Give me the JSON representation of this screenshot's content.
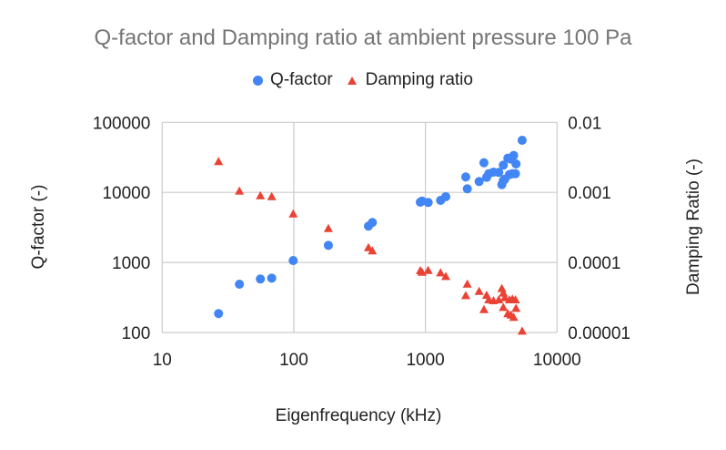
{
  "chart_data": {
    "type": "scatter",
    "title": "Q-factor and Damping ratio at ambient pressure 100 Pa",
    "xlabel": "Eigenfrequency (kHz)",
    "ylabel": "Q-factor (-)",
    "y2label": "Damping Ratio (-)",
    "xscale": "log",
    "yscale": "log",
    "y2scale": "log",
    "xlim": [
      10,
      10000
    ],
    "ylim": [
      100,
      100000
    ],
    "y2lim": [
      1e-05,
      0.01
    ],
    "xticks": [
      "10",
      "100",
      "1000",
      "10000"
    ],
    "yticks": [
      "100",
      "1000",
      "10000",
      "100000"
    ],
    "y2ticks": [
      "0.00001",
      "0.0001",
      "0.001",
      "0.01"
    ],
    "grid": true,
    "legend_position": "top",
    "colors": {
      "q": "#4285f4",
      "d": "#ea4335",
      "grid": "#cccccc",
      "title": "#757575"
    },
    "series": [
      {
        "name": "Q-factor",
        "axis": "left",
        "marker": "circle",
        "x": [
          26.8,
          38.6,
          55.7,
          67.9,
          98.9,
          183,
          369,
          395,
          914,
          942,
          1049,
          1303,
          1427,
          2024,
          2080,
          2558,
          2782,
          2917,
          3027,
          3289,
          3607,
          3805,
          3906,
          4009,
          3906,
          4227,
          4346,
          4466,
          4581,
          4681,
          4831,
          4877,
          5429
        ],
        "y": [
          186,
          489,
          580,
          597,
          1064,
          1755,
          3296,
          3715,
          7244,
          7524,
          7172,
          7695,
          8670,
          16600,
          11240,
          14290,
          26490,
          16410,
          18490,
          19460,
          19270,
          12910,
          14720,
          15450,
          24480,
          30760,
          17950,
          29860,
          18490,
          33650,
          18490,
          25480,
          55400
        ]
      },
      {
        "name": "Damping ratio",
        "axis": "right",
        "marker": "triangle",
        "x": [
          26.8,
          38.6,
          55.7,
          67.9,
          98.9,
          183,
          369,
          395,
          914,
          942,
          1049,
          1303,
          1427,
          2024,
          2080,
          2558,
          2782,
          2917,
          3027,
          3289,
          3607,
          3805,
          3906,
          4009,
          3906,
          4227,
          4346,
          4466,
          4581,
          4681,
          4831,
          4877,
          5429
        ],
        "y": [
          0.00276,
          0.00105,
          0.0009,
          0.000874,
          0.000494,
          0.000306,
          0.000163,
          0.000147,
          7.66e-05,
          7.28e-05,
          7.73e-05,
          7.14e-05,
          6.34e-05,
          3.38e-05,
          4.93e-05,
          3.88e-05,
          2.13e-05,
          3.41e-05,
          2.94e-05,
          2.85e-05,
          2.94e-05,
          4.25e-05,
          3.66e-05,
          3.15e-05,
          2.29e-05,
          1.86e-05,
          2.94e-05,
          1.78e-05,
          3e-05,
          1.65e-05,
          2.94e-05,
          2.22e-05,
          1.05e-05
        ]
      }
    ]
  }
}
